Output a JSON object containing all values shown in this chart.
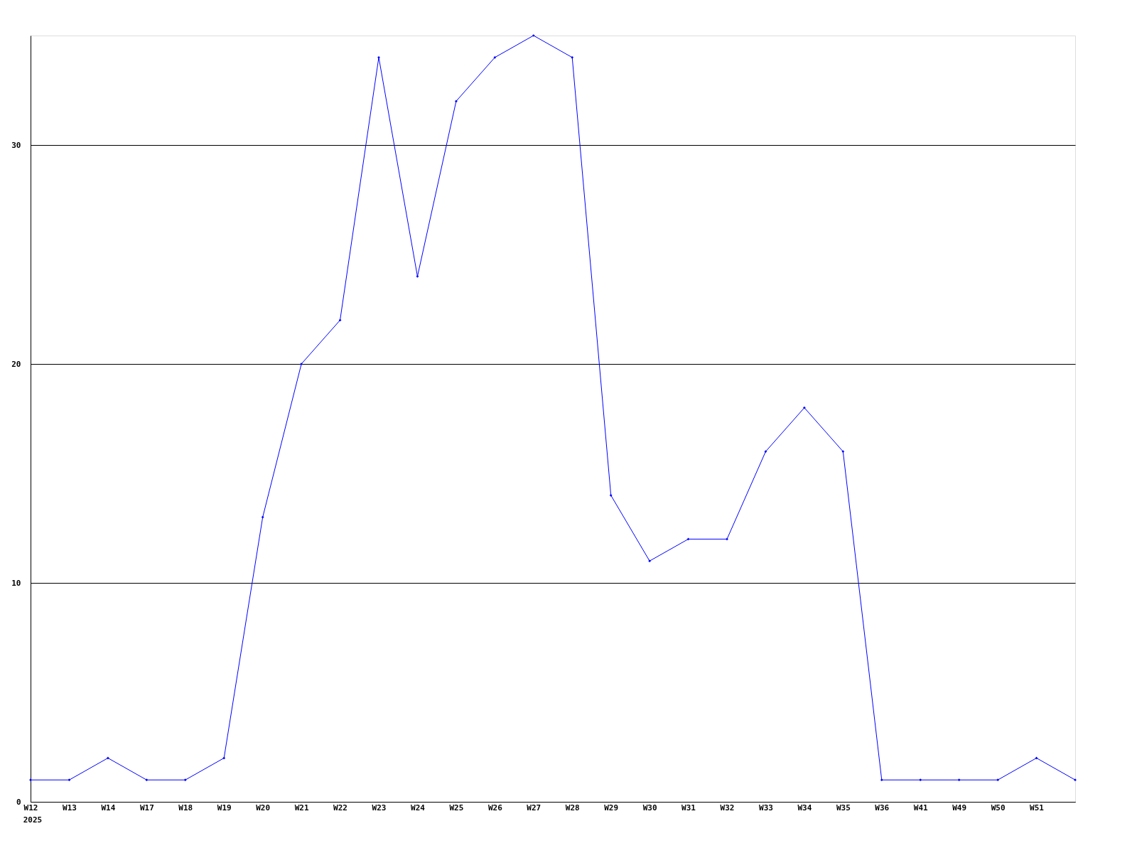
{
  "chart_data": {
    "type": "line",
    "categories": [
      "W12",
      "W13",
      "W14",
      "W17",
      "W18",
      "W19",
      "W20",
      "W21",
      "W22",
      "W23",
      "W24",
      "W25",
      "W26",
      "W27",
      "W28",
      "W29",
      "W30",
      "W31",
      "W32",
      "W33",
      "W34",
      "W35",
      "W36",
      "W41",
      "W49",
      "W50",
      "W51",
      null
    ],
    "series": [
      {
        "color": "#0000ff",
        "values": [
          1,
          1,
          2,
          1,
          1,
          2,
          13,
          20,
          22,
          34,
          24,
          32,
          34,
          35,
          34,
          14,
          11,
          12,
          12,
          16,
          18,
          16,
          1,
          1,
          1,
          1,
          2,
          1
        ]
      }
    ],
    "ylim": [
      0,
      35
    ],
    "yticks": [
      0,
      10,
      20,
      30
    ],
    "grid": "y",
    "marker": "diamond",
    "line_style": "solid",
    "annotations": [
      "2025"
    ]
  }
}
